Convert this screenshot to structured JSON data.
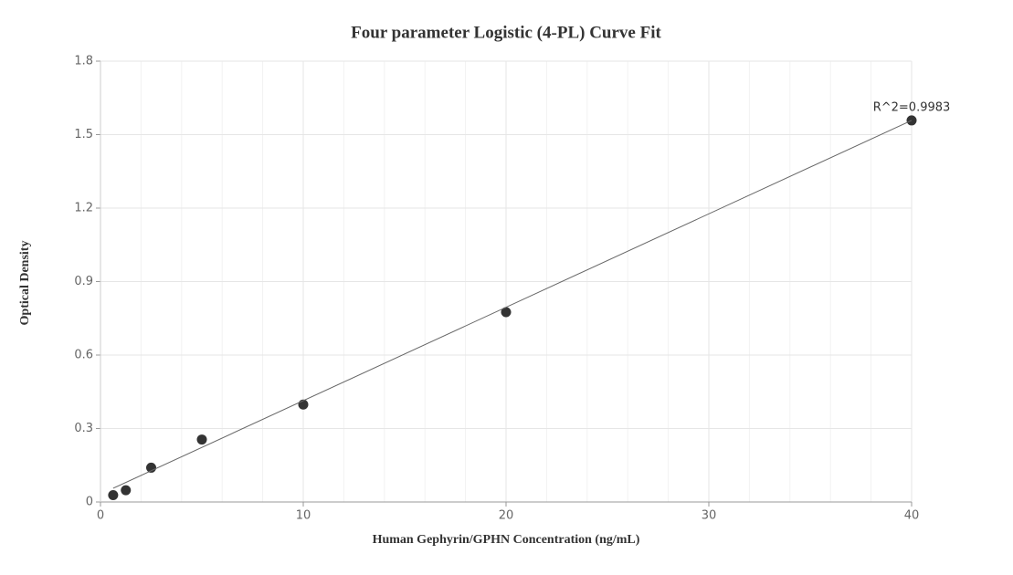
{
  "chart_data": {
    "type": "scatter",
    "title": "Four parameter Logistic (4-PL) Curve Fit",
    "xlabel": "Human Gephyrin/GPHN Concentration (ng/mL)",
    "ylabel": "Optical Density",
    "annotation": "R^2=0.9983",
    "series": [
      {
        "kind": "points",
        "color": "#333333",
        "x": [
          0.625,
          1.25,
          2.5,
          5,
          10,
          20,
          40
        ],
        "values": [
          0.028,
          0.048,
          0.14,
          0.255,
          0.398,
          0.775,
          1.558
        ]
      },
      {
        "kind": "line",
        "color": "#666666",
        "x": [
          0.625,
          40
        ],
        "values": [
          0.056,
          1.558
        ]
      }
    ],
    "xlim": [
      0,
      40
    ],
    "xticks": [
      0,
      10,
      20,
      30,
      40
    ],
    "xminorticks": [
      2,
      4,
      6,
      8,
      12,
      14,
      16,
      18,
      22,
      24,
      26,
      28,
      32,
      34,
      36,
      38
    ],
    "ylim": [
      0,
      1.8
    ],
    "yticks": [
      0,
      0.3,
      0.6,
      0.9,
      1.2,
      1.5,
      1.8
    ],
    "grid": true
  }
}
